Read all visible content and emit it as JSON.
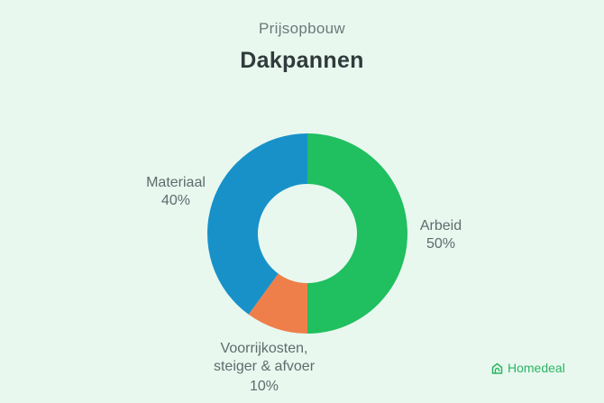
{
  "header": {
    "subtitle": "Prijsopbouw",
    "title": "Dakpannen"
  },
  "brand": {
    "name": "Homedeal",
    "icon": "house-icon",
    "color": "#2bb563"
  },
  "labels": {
    "arbeid": {
      "name": "Arbeid",
      "pct": "50%"
    },
    "materiaal": {
      "name": "Materiaal",
      "pct": "40%"
    },
    "voorrij": {
      "line1": "Voorrijkosten,",
      "line2": "steiger & afvoer",
      "pct": "10%"
    }
  },
  "chart_data": {
    "type": "pie",
    "subtype": "donut",
    "title": "Dakpannen",
    "subtitle": "Prijsopbouw",
    "categories": [
      "Arbeid",
      "Voorrijkosten, steiger & afvoer",
      "Materiaal"
    ],
    "values": [
      50,
      10,
      40
    ],
    "unit": "%",
    "colors": [
      "#20bf5f",
      "#ee7f4a",
      "#1891c9"
    ],
    "start_angle": "top, clockwise",
    "legend": "none (direct labels)"
  }
}
